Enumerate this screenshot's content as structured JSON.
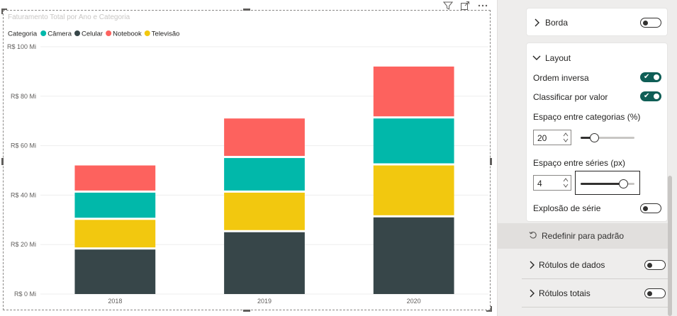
{
  "chart_data": {
    "type": "bar",
    "stacked": true,
    "title": "Faturamento Total por Ano e Categoria",
    "legend_title": "Categoria",
    "legend_position": "top-left",
    "categories": [
      "2018",
      "2019",
      "2020"
    ],
    "series": [
      {
        "name": "Celular",
        "color": "#374649",
        "values": [
          18,
          25,
          31
        ]
      },
      {
        "name": "Televisão",
        "color": "#f2c80f",
        "values": [
          12,
          16,
          21
        ]
      },
      {
        "name": "Câmera",
        "color": "#01b8aa",
        "values": [
          11,
          14,
          19
        ]
      },
      {
        "name": "Notebook",
        "color": "#fd625e",
        "values": [
          11,
          16,
          21
        ]
      }
    ],
    "legend_order": [
      "Câmera",
      "Celular",
      "Notebook",
      "Televisão"
    ],
    "ylim": [
      0,
      100
    ],
    "y_ticks": [
      "R$ 0 Mi",
      "R$ 20 Mi",
      "R$ 40 Mi",
      "R$ 60 Mi",
      "R$ 80 Mi",
      "R$ 100 Mi"
    ],
    "grid": true
  },
  "pane": {
    "borda_label": "Borda",
    "layout_label": "Layout",
    "ordem_inversa_label": "Ordem inversa",
    "classificar_label": "Classificar por valor",
    "espaco_categorias_label": "Espaço entre categorias (%)",
    "espaco_categorias_value": "20",
    "espaco_series_label": "Espaço entre séries (px)",
    "espaco_series_value": "4",
    "explosao_label": "Explosão de série",
    "redefinir_label": "Redefinir para padrão",
    "rotulos_dados_label": "Rótulos de dados",
    "rotulos_totais_label": "Rótulos totais"
  }
}
